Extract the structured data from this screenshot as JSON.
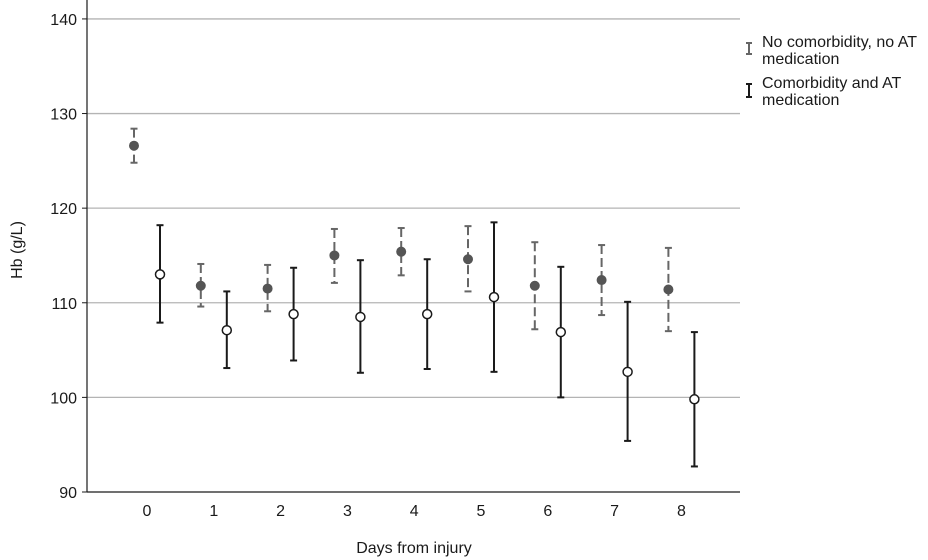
{
  "chart_data": {
    "type": "errorbar",
    "xlabel": "Days from injury",
    "ylabel": "Hb (g/L)",
    "categories": [
      "0",
      "1",
      "2",
      "3",
      "4",
      "5",
      "6",
      "7",
      "8"
    ],
    "yticks": [
      90,
      100,
      110,
      120,
      130,
      140
    ],
    "ylim": [
      90,
      142
    ],
    "grid": "horizontal",
    "legend_position": "top-right",
    "series": [
      {
        "name": "No comorbidity, no AT medication",
        "marker": "filled-circle",
        "line": "dashed",
        "color": "#666666",
        "mean": [
          126.6,
          111.8,
          111.5,
          115.0,
          115.4,
          114.6,
          111.8,
          112.4,
          111.4
        ],
        "lower": [
          124.8,
          109.6,
          109.1,
          112.1,
          112.9,
          111.2,
          107.2,
          108.7,
          107.0
        ],
        "upper": [
          128.4,
          114.1,
          114.0,
          117.8,
          117.9,
          118.1,
          116.4,
          116.1,
          115.8
        ]
      },
      {
        "name": "Comorbidity and AT medication",
        "marker": "open-circle",
        "line": "solid",
        "color": "#1a1a1a",
        "mean": [
          113.0,
          107.1,
          108.8,
          108.5,
          108.8,
          110.6,
          106.9,
          102.7,
          99.8
        ],
        "lower": [
          107.9,
          103.1,
          103.9,
          102.6,
          103.0,
          102.7,
          100.0,
          95.4,
          92.7
        ],
        "upper": [
          118.2,
          111.2,
          113.7,
          114.5,
          114.6,
          118.5,
          113.8,
          110.1,
          106.9
        ]
      }
    ]
  }
}
